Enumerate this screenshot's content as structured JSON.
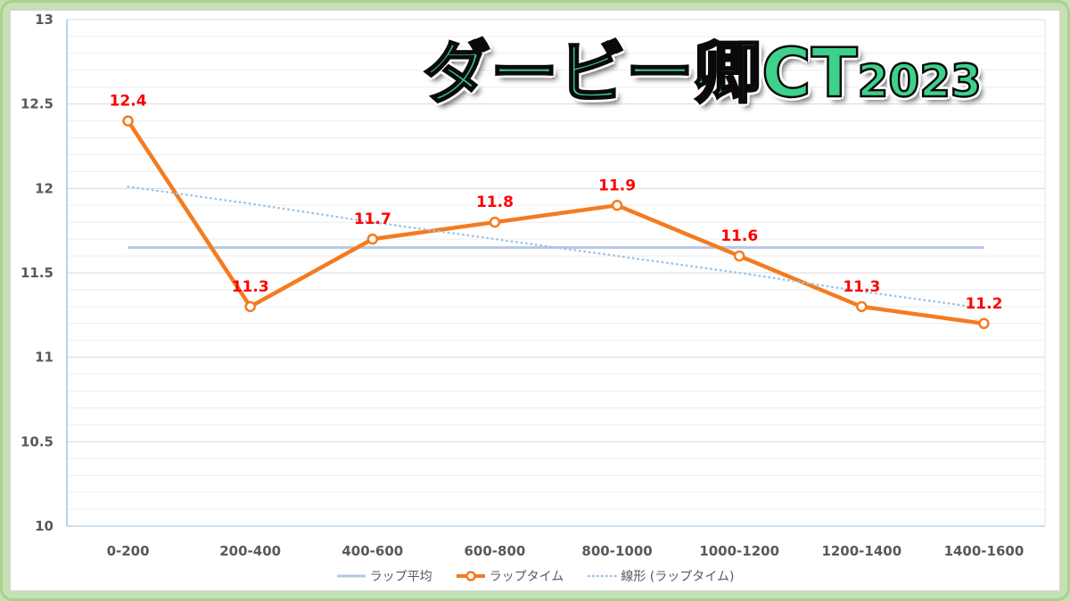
{
  "chart_data": {
    "type": "line",
    "title": "ダービー卿CT",
    "title_suffix": "2023",
    "xlabel": "",
    "ylabel": "",
    "categories": [
      "0-200",
      "200-400",
      "400-600",
      "600-800",
      "800-1000",
      "1000-1200",
      "1200-1400",
      "1400-1600"
    ],
    "ylim": [
      10,
      13
    ],
    "y_ticks": [
      13,
      12.5,
      12,
      11.5,
      11,
      10.5,
      10
    ],
    "grid": {
      "major_step": 0.5,
      "minor_step": 0.1
    },
    "legend": "bottom",
    "series": [
      {
        "name": "ラップ平均",
        "values": [
          11.65,
          11.65,
          11.65,
          11.65,
          11.65,
          11.65,
          11.65,
          11.65
        ],
        "color": "#b4c7e7",
        "line_style": "solid",
        "marker": "none"
      },
      {
        "name": "ラップタイム",
        "values": [
          12.4,
          11.3,
          11.7,
          11.8,
          11.9,
          11.6,
          11.3,
          11.2
        ],
        "color": "#f47b20",
        "line_style": "solid",
        "marker": "circle",
        "data_labels": true,
        "label_color": "#ff0000"
      },
      {
        "name": "線形 (ラップタイム)",
        "values": [
          12.01,
          11.91,
          11.8,
          11.7,
          11.6,
          11.5,
          11.39,
          11.29
        ],
        "color": "#9dc3e6",
        "line_style": "dotted",
        "marker": "none",
        "trendline": "linear"
      }
    ]
  }
}
